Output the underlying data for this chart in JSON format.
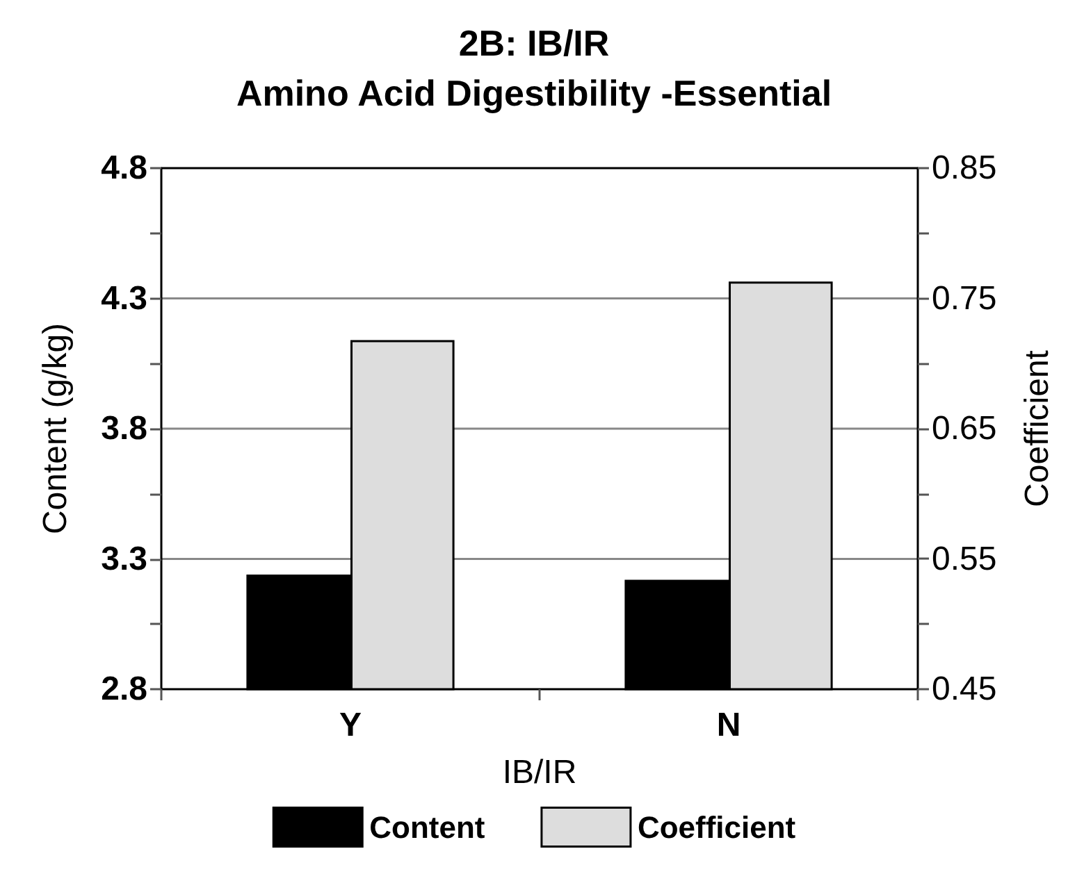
{
  "chart_data": {
    "type": "bar",
    "title": "2B: IB/IR\nAmino Acid Digestibility -Essential",
    "xlabel": "IB/IR",
    "ylabel": "Content (g/kg)",
    "y2label": "Coefficient",
    "categories": [
      "Y",
      "N"
    ],
    "series": [
      {
        "name": "Content",
        "color": "#000000",
        "values": [
          3.24,
          3.22
        ]
      },
      {
        "name": "Coefficient",
        "color": "#dddddd",
        "values": [
          0.718,
          0.763
        ],
        "axis": "y2"
      }
    ],
    "ylim": [
      2.8,
      4.8
    ],
    "yticks": [
      2.8,
      {
        "value": 3.05,
        "label": null
      },
      3.3,
      {
        "value": 3.55,
        "label": null
      },
      3.8,
      {
        "value": 4.05,
        "label": null
      },
      4.3,
      {
        "value": 4.55,
        "label": null
      },
      4.8
    ],
    "y2lim": [
      0.45,
      0.85
    ],
    "y2ticks": [
      0.45,
      {
        "value": 0.5,
        "label": null
      },
      0.55,
      {
        "value": 0.6,
        "label": null
      },
      0.65,
      {
        "value": 0.7,
        "label": null
      },
      0.75,
      {
        "value": 0.8,
        "label": null
      },
      0.85
    ],
    "grid": "y",
    "legend": "bottom"
  }
}
